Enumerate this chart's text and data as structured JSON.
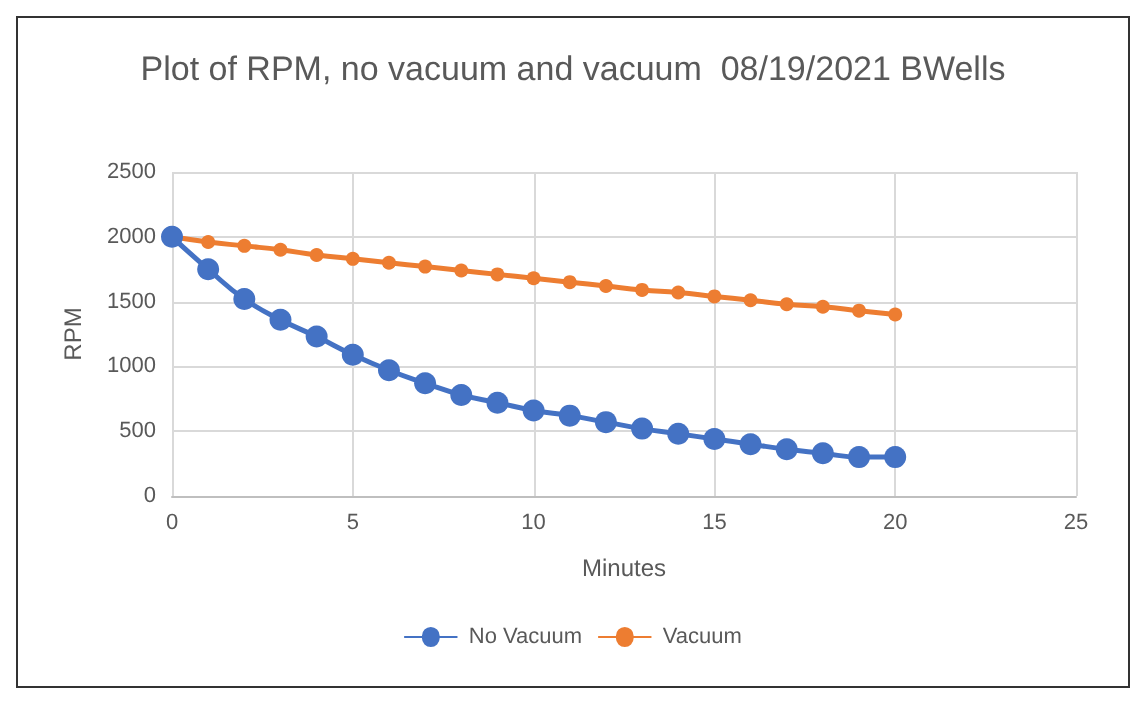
{
  "chart_data": {
    "type": "line",
    "title": "Plot of RPM, no vacuum and vacuum  08/19/2021 BWells",
    "xlabel": "Minutes",
    "ylabel": "RPM",
    "x": [
      0,
      1,
      2,
      3,
      4,
      5,
      6,
      7,
      8,
      9,
      10,
      11,
      12,
      13,
      14,
      15,
      16,
      17,
      18,
      19,
      20
    ],
    "series": [
      {
        "name": "No Vacuum",
        "color": "#4472c4",
        "values": [
          2000,
          1750,
          1520,
          1360,
          1230,
          1090,
          970,
          870,
          780,
          720,
          660,
          620,
          570,
          520,
          480,
          440,
          400,
          360,
          330,
          300,
          300
        ]
      },
      {
        "name": "Vacuum",
        "color": "#ed7d31",
        "values": [
          2000,
          1960,
          1930,
          1900,
          1860,
          1830,
          1800,
          1770,
          1740,
          1710,
          1680,
          1650,
          1620,
          1590,
          1570,
          1540,
          1510,
          1480,
          1460,
          1430,
          1400
        ]
      }
    ],
    "xlim": [
      0,
      25
    ],
    "xticks": [
      0,
      5,
      10,
      15,
      20,
      25
    ],
    "ylim": [
      0,
      2500
    ],
    "yticks": [
      0,
      500,
      1000,
      1500,
      2000,
      2500
    ],
    "grid": true,
    "legend": "bottom",
    "marker": "circle",
    "line_style": "solid"
  }
}
